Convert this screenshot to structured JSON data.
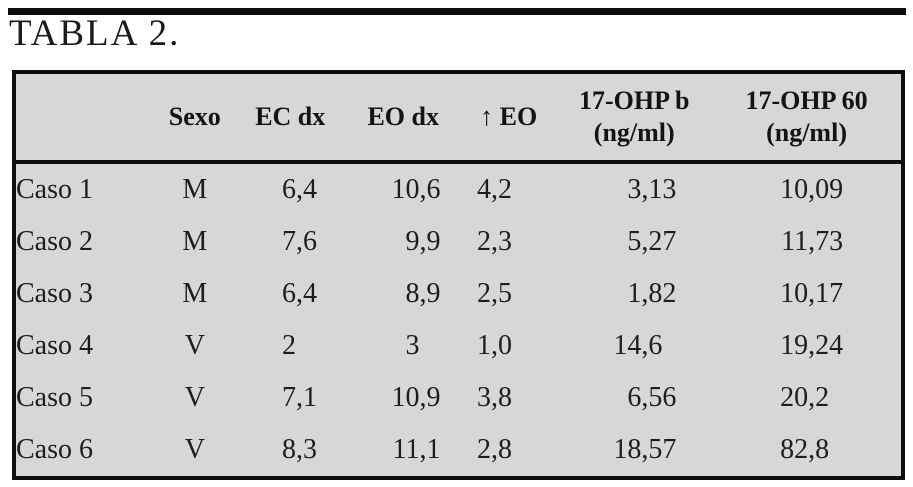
{
  "title": "TABLA 2.",
  "colors": {
    "page_bg": "#ffffff",
    "table_bg": "#d7d7d7",
    "rule": "#0d0d0d",
    "text": "#161616"
  },
  "table": {
    "columns": [
      {
        "id": "case",
        "label": ""
      },
      {
        "id": "sexo",
        "label": "Sexo"
      },
      {
        "id": "ec-dx",
        "label": "EC dx"
      },
      {
        "id": "eo-dx",
        "label": "EO dx"
      },
      {
        "id": "inc-eo",
        "label": "↑ EO"
      },
      {
        "id": "ohp-basal",
        "label": "17-OHP b\n(ng/ml)"
      },
      {
        "id": "ohp-60",
        "label": "17-OHP 60\n(ng/ml)"
      }
    ],
    "rows": [
      {
        "label": "Caso 1",
        "sexo": "M",
        "values": [
          "6,4",
          "10,6",
          "4,2",
          "3,13",
          "10,09"
        ]
      },
      {
        "label": "Caso 2",
        "sexo": "M",
        "values": [
          "7,6",
          "9,9",
          "2,3",
          "5,27",
          "11,73"
        ]
      },
      {
        "label": "Caso 3",
        "sexo": "M",
        "values": [
          "6,4",
          "8,9",
          "2,5",
          "1,82",
          "10,17"
        ]
      },
      {
        "label": "Caso 4",
        "sexo": "V",
        "values": [
          "2",
          "3",
          "1,0",
          "14,6",
          "19,24"
        ]
      },
      {
        "label": "Caso 5",
        "sexo": "V",
        "values": [
          "7,1",
          "10,9",
          "3,8",
          "6,56",
          "20,2"
        ]
      },
      {
        "label": "Caso 6",
        "sexo": "V",
        "values": [
          "8,3",
          "11,1",
          "2,8",
          "18,57",
          "82,8"
        ]
      }
    ]
  }
}
